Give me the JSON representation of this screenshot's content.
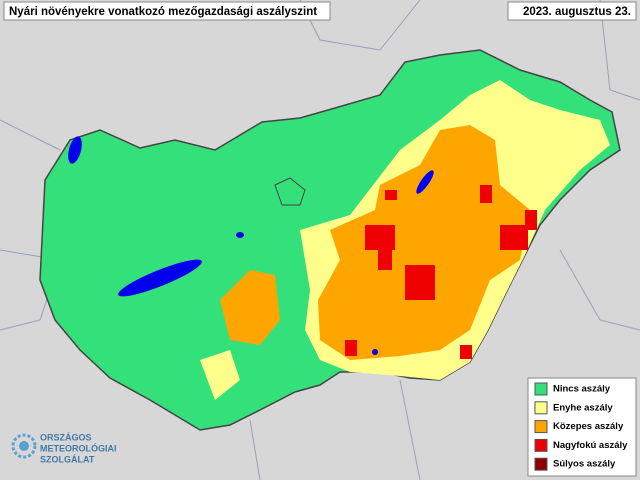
{
  "header": {
    "title": "Nyári növényekre vonatkozó mezőgazdasági aszályszint",
    "date": "2023. augusztus 23."
  },
  "legend": {
    "items": [
      {
        "label": "Nincs aszály",
        "color": "#33e07a"
      },
      {
        "label": "Enyhe aszály",
        "color": "#ffff8c"
      },
      {
        "label": "Közepes aszály",
        "color": "#ffa500"
      },
      {
        "label": "Nagyfokú aszály",
        "color": "#ee0000"
      },
      {
        "label": "Súlyos aszály",
        "color": "#8b0000"
      }
    ]
  },
  "logo": {
    "lines": [
      "ORSZÁGOS",
      "METEOROLÓGIAI",
      "SZOLGÁLAT"
    ]
  }
}
